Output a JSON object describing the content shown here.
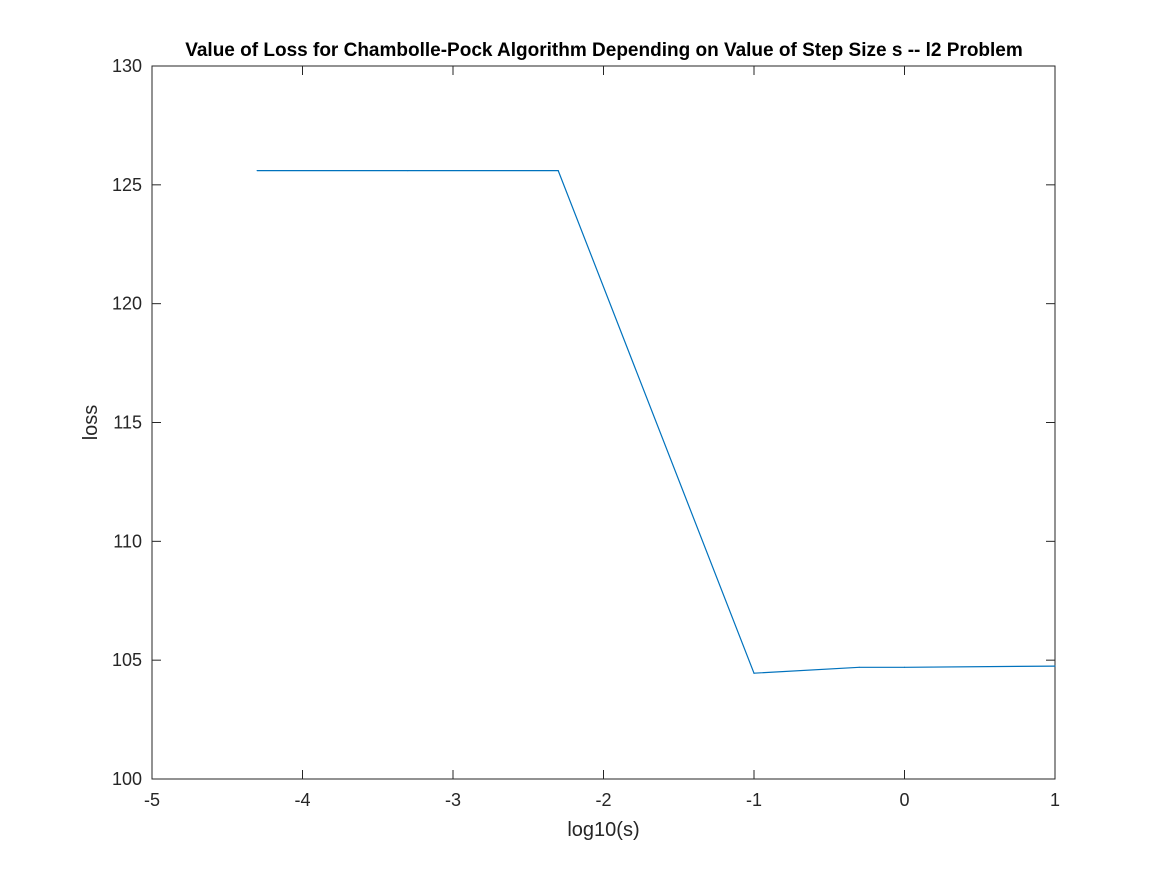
{
  "chart_data": {
    "type": "line",
    "title": "Value of Loss for Chambolle-Pock Algorithm Depending on Value of Step Size s -- l2 Problem",
    "xlabel": "log10(s)",
    "ylabel": "loss",
    "xlim": [
      -5,
      1
    ],
    "ylim": [
      100,
      130
    ],
    "xticks": [
      -5,
      -4,
      -3,
      -2,
      -1,
      0,
      1
    ],
    "yticks": [
      100,
      105,
      110,
      115,
      120,
      125,
      130
    ],
    "grid": false,
    "series": [
      {
        "color": "#0072BD",
        "x": [
          -4.301,
          -3.301,
          -2.301,
          -1,
          -0.301,
          0,
          1
        ],
        "y": [
          125.6,
          125.6,
          125.6,
          104.45,
          104.7,
          104.7,
          104.75
        ]
      }
    ]
  }
}
